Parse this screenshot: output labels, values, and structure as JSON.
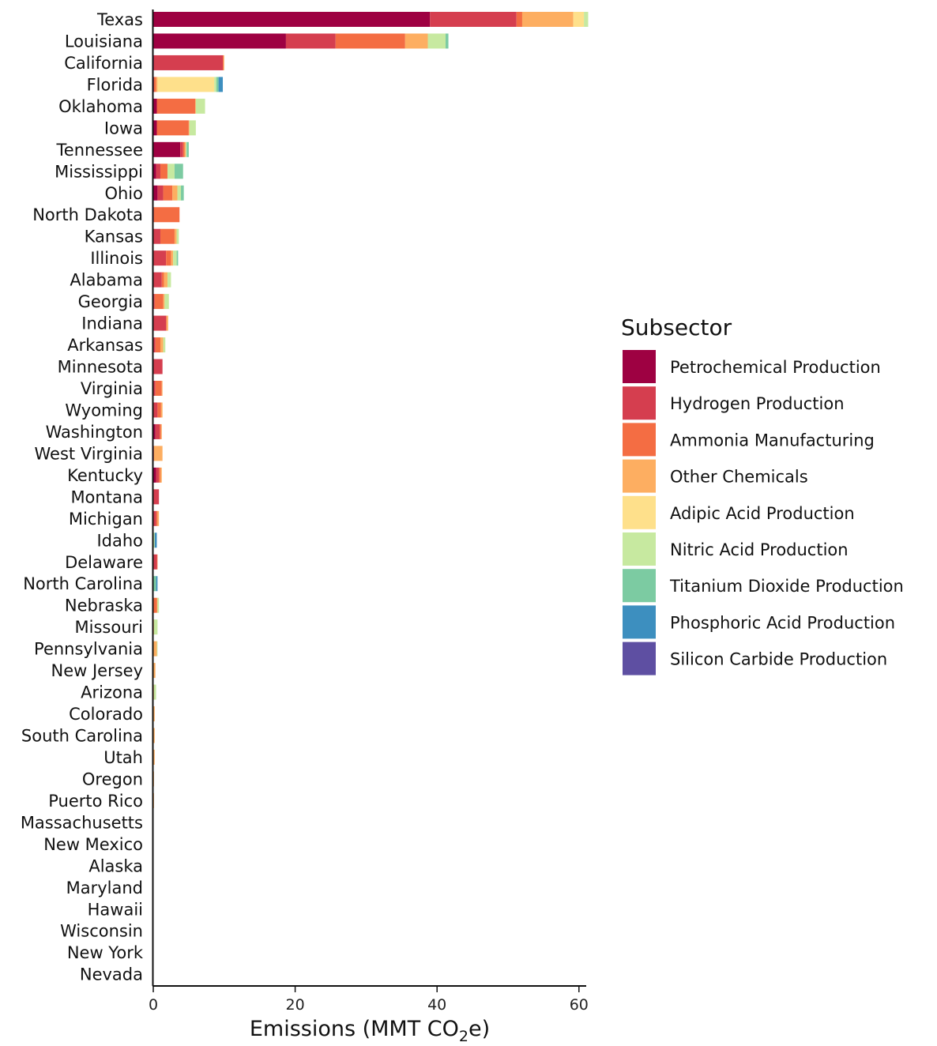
{
  "chart_data": {
    "type": "bar",
    "orientation": "horizontal",
    "stacked": true,
    "xlabel": "Emissions (MMT CO",
    "xlabel_subscript": "2",
    "xlabel_suffix": "e)",
    "xlim": [
      0,
      61
    ],
    "xticks": [
      0,
      20,
      40,
      60
    ],
    "grid": false,
    "legend_title": "Subsector",
    "legend_position": "right",
    "categories": [
      "Texas",
      "Louisiana",
      "California",
      "Florida",
      "Oklahoma",
      "Iowa",
      "Tennessee",
      "Mississippi",
      "Ohio",
      "North Dakota",
      "Kansas",
      "Illinois",
      "Alabama",
      "Georgia",
      "Indiana",
      "Arkansas",
      "Minnesota",
      "Virginia",
      "Wyoming",
      "Washington",
      "West Virginia",
      "Kentucky",
      "Montana",
      "Michigan",
      "Idaho",
      "Delaware",
      "North Carolina",
      "Nebraska",
      "Missouri",
      "Pennsylvania",
      "New Jersey",
      "Arizona",
      "Colorado",
      "South Carolina",
      "Utah",
      "Oregon",
      "Puerto Rico",
      "Massachusetts",
      "New Mexico",
      "Alaska",
      "Maryland",
      "Hawaii",
      "Wisconsin",
      "New York",
      "Nevada"
    ],
    "series": [
      {
        "name": "Petrochemical Production",
        "color": "#9e0142",
        "values": [
          39.0,
          18.7,
          0.1,
          0.1,
          0.5,
          0.5,
          3.8,
          0.4,
          0.6,
          0,
          0,
          0,
          0,
          0,
          0,
          0,
          0,
          0,
          0,
          0.3,
          0,
          0.4,
          0,
          0,
          0,
          0,
          0,
          0,
          0,
          0,
          0,
          0,
          0,
          0,
          0,
          0,
          0,
          0,
          0,
          0,
          0,
          0,
          0,
          0,
          0
        ]
      },
      {
        "name": "Hydrogen Production",
        "color": "#d53e4f",
        "values": [
          12.2,
          7.0,
          9.7,
          0,
          0,
          0,
          0.4,
          0.6,
          0.8,
          0.1,
          1.0,
          1.8,
          1.2,
          0.2,
          1.8,
          0.3,
          1.3,
          0.3,
          0.6,
          0.6,
          0.1,
          0.4,
          0.8,
          0.4,
          0,
          0.5,
          0,
          0,
          0,
          0,
          0,
          0,
          0,
          0,
          0,
          0,
          0,
          0,
          0,
          0,
          0,
          0,
          0,
          0,
          0
        ]
      },
      {
        "name": "Ammonia Manufacturing",
        "color": "#f46d43",
        "values": [
          0.8,
          9.8,
          0.1,
          0.3,
          5.4,
          4.5,
          0.2,
          1.0,
          1.3,
          3.6,
          2.0,
          0.7,
          0.3,
          1.2,
          0.1,
          0.7,
          0,
          0.9,
          0.5,
          0.2,
          0,
          0.2,
          0,
          0.2,
          0,
          0.1,
          0,
          0.5,
          0,
          0,
          0,
          0,
          0,
          0,
          0,
          0,
          0,
          0,
          0,
          0,
          0,
          0,
          0,
          0,
          0
        ]
      },
      {
        "name": "Other Chemicals",
        "color": "#fdae61",
        "values": [
          7.2,
          3.2,
          0.1,
          0.2,
          0.1,
          0.1,
          0.2,
          0,
          0.7,
          0,
          0.3,
          0.3,
          0.5,
          0.2,
          0.2,
          0.4,
          0,
          0.1,
          0.2,
          0.1,
          1.2,
          0.2,
          0,
          0.2,
          0,
          0,
          0,
          0.1,
          0.1,
          0.5,
          0.3,
          0.1,
          0.2,
          0.2,
          0.2,
          0.1,
          0.1,
          0.05,
          0.05,
          0.05,
          0.05,
          0.05,
          0.05,
          0.05,
          0.05
        ]
      },
      {
        "name": "Adipic Acid Production",
        "color": "#fee08b",
        "values": [
          1.5,
          0,
          0,
          8.0,
          0,
          0,
          0,
          0,
          0,
          0,
          0,
          0,
          0,
          0,
          0,
          0,
          0,
          0,
          0,
          0,
          0,
          0,
          0,
          0,
          0,
          0,
          0,
          0,
          0,
          0,
          0,
          0,
          0,
          0,
          0,
          0,
          0,
          0,
          0,
          0,
          0,
          0,
          0,
          0,
          0
        ]
      },
      {
        "name": "Nitric Acid Production",
        "color": "#c7e9a0",
        "values": [
          0.6,
          2.5,
          0,
          0.3,
          1.3,
          0.9,
          0.1,
          1.0,
          0.5,
          0,
          0.3,
          0.5,
          0.5,
          0.6,
          0,
          0.3,
          0,
          0,
          0,
          0,
          0,
          0,
          0,
          0,
          0.2,
          0,
          0,
          0.2,
          0.5,
          0.1,
          0,
          0.3,
          0,
          0,
          0,
          0,
          0,
          0,
          0,
          0,
          0,
          0,
          0,
          0,
          0
        ]
      },
      {
        "name": "Titanium Dioxide Production",
        "color": "#7ccba2",
        "values": [
          0,
          0.4,
          0,
          0.3,
          0,
          0,
          0.3,
          1.2,
          0.4,
          0,
          0,
          0.2,
          0,
          0,
          0,
          0,
          0,
          0,
          0,
          0,
          0,
          0,
          0,
          0,
          0,
          0,
          0.4,
          0,
          0,
          0,
          0,
          0,
          0,
          0,
          0,
          0,
          0,
          0,
          0,
          0,
          0,
          0,
          0,
          0,
          0
        ]
      },
      {
        "name": "Phosphoric Acid Production",
        "color": "#3d8fbf",
        "values": [
          0,
          0,
          0,
          0.6,
          0,
          0,
          0,
          0,
          0,
          0,
          0,
          0,
          0,
          0,
          0,
          0,
          0,
          0,
          0,
          0,
          0,
          0,
          0,
          0,
          0.3,
          0,
          0.2,
          0,
          0,
          0,
          0,
          0,
          0,
          0,
          0,
          0,
          0,
          0,
          0,
          0,
          0,
          0,
          0,
          0,
          0
        ]
      },
      {
        "name": "Silicon Carbide Production",
        "color": "#5e4fa2",
        "values": [
          0,
          0,
          0,
          0,
          0,
          0,
          0,
          0,
          0,
          0,
          0,
          0,
          0,
          0,
          0,
          0,
          0,
          0,
          0,
          0,
          0,
          0,
          0,
          0,
          0,
          0,
          0,
          0,
          0,
          0,
          0,
          0,
          0,
          0,
          0,
          0,
          0,
          0,
          0,
          0,
          0,
          0,
          0,
          0,
          0
        ]
      }
    ]
  }
}
